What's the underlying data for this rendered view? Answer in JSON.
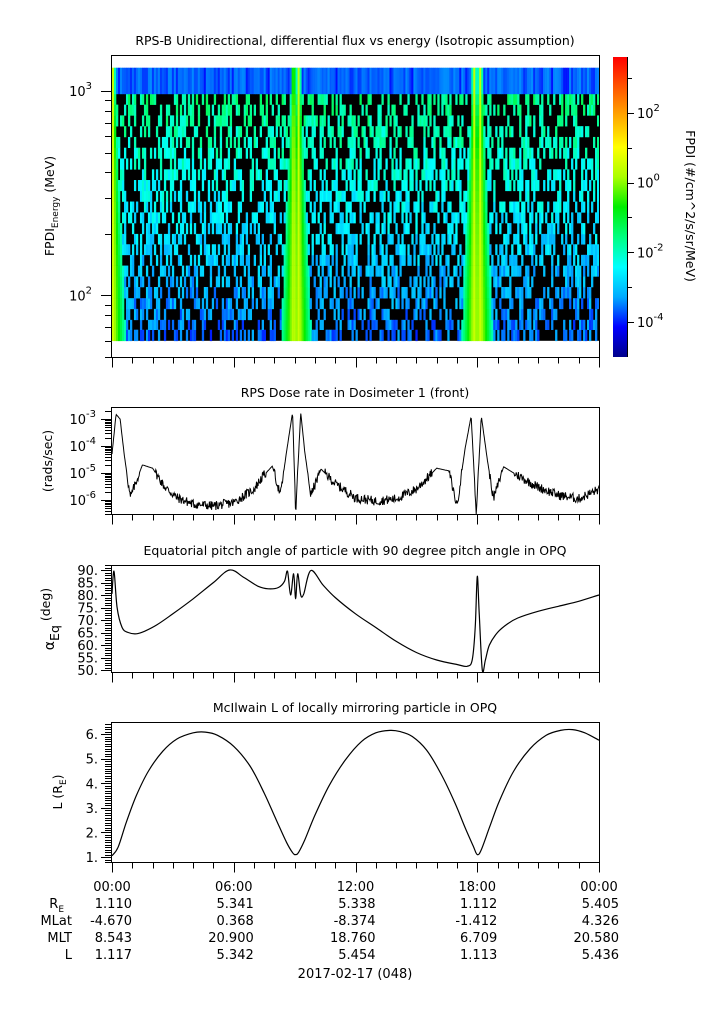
{
  "chart_data": [
    {
      "type": "heatmap",
      "title": "RPS-B  Unidirectional, differential flux vs energy (Isotropic assumption)",
      "ylabel": "FPDI",
      "ylabel_sub": "Energy",
      "ylabel_unit": " (MeV)",
      "yscale": "log",
      "ylim": [
        50,
        1500
      ],
      "yticks": [
        {
          "value": 100,
          "base": "10",
          "exp": "2"
        },
        {
          "value": 1000,
          "base": "10",
          "exp": "3"
        }
      ],
      "energy_bins_MeV": [
        60,
        68,
        76,
        86,
        97,
        110,
        124,
        140,
        158,
        178,
        200,
        226,
        255,
        288,
        325,
        367,
        414,
        468,
        528,
        596,
        673,
        760,
        858,
        968,
        1300
      ],
      "xlim_hours": [
        0,
        24
      ],
      "colorbar": {
        "label": "FPDI (#/cm^2/s/sr/MeV)",
        "scale": "log",
        "range": [
          1e-05,
          4000
        ],
        "ticks": [
          {
            "value": 100,
            "base": "10",
            "exp": "2"
          },
          {
            "value": 1,
            "base": "10",
            "exp": "0"
          },
          {
            "value": 0.01,
            "base": "10",
            "exp": "-2"
          },
          {
            "value": 0.0001,
            "base": "10",
            "exp": "-4"
          }
        ],
        "colors": [
          "#00008b",
          "#0000ff",
          "#00aaff",
          "#00ffff",
          "#00ff80",
          "#00ee00",
          "#aaff00",
          "#ffff00",
          "#ffaa00",
          "#ff5500",
          "#ff0000"
        ]
      },
      "belt_crossings_hours": [
        0.05,
        8.95,
        9.2,
        17.85,
        18.15
      ],
      "background_flux_typical": 0.001,
      "peak_flux_typical": 3,
      "fill_value_color": "#000000"
    },
    {
      "type": "line",
      "title": "RPS  Dose rate in Dosimeter 1 (front)",
      "ylabel": "(rads/sec)",
      "yscale": "log",
      "ylim": [
        3e-07,
        0.0028
      ],
      "yticks": [
        {
          "value": 0.001,
          "base": "10",
          "exp": "-3"
        },
        {
          "value": 0.0001,
          "base": "10",
          "exp": "-4"
        },
        {
          "value": 1e-05,
          "base": "10",
          "exp": "-5"
        },
        {
          "value": 1e-06,
          "base": "10",
          "exp": "-6"
        }
      ],
      "x_hours": [
        0,
        0.2,
        0.4,
        0.6,
        0.9,
        1.2,
        1.5,
        2.0,
        2.6,
        3.2,
        4.0,
        5.0,
        6.0,
        7.0,
        7.4,
        7.9,
        8.3,
        8.6,
        8.9,
        9.05,
        9.3,
        9.5,
        9.8,
        10.3,
        11.0,
        12.0,
        13.0,
        14.0,
        15.0,
        16.0,
        16.6,
        17.0,
        17.4,
        17.7,
        17.95,
        18.2,
        18.5,
        18.8,
        19.3,
        20.0,
        21.0,
        22.0,
        23.0,
        24.0
      ],
      "y_rads_per_sec": [
        5e-05,
        0.0015,
        0.001,
        5e-05,
        1.2e-06,
        5e-06,
        2e-05,
        1.5e-05,
        3e-06,
        1.2e-06,
        7e-07,
        6e-07,
        8e-07,
        2.5e-06,
        7e-06,
        1.8e-05,
        1.5e-06,
        6e-05,
        0.0018,
        3e-07,
        0.0018,
        6e-05,
        1.5e-06,
        1.4e-05,
        4e-06,
        1.2e-06,
        9e-07,
        1.1e-06,
        2.5e-06,
        1.5e-05,
        1.2e-05,
        6e-07,
        8e-05,
        0.0013,
        3e-07,
        0.0013,
        3e-05,
        1.1e-06,
        1.7e-05,
        8e-06,
        3e-06,
        1.5e-06,
        1.1e-06,
        2.5e-06
      ]
    },
    {
      "type": "line",
      "title": "Equatorial pitch angle of particle with 90 degree pitch angle in OPQ",
      "ylabel": "α",
      "ylabel_sub": "Eq",
      "ylabel_unit": " (deg)",
      "ylim": [
        49.2,
        92
      ],
      "yticks": [
        "90.",
        "85.",
        "80.",
        "75.",
        "70.",
        "65.",
        "60.",
        "55.",
        "50."
      ],
      "ytick_values": [
        90,
        85,
        80,
        75,
        70,
        65,
        60,
        55,
        50
      ],
      "x_hours": [
        0,
        0.1,
        0.25,
        0.5,
        0.8,
        1.2,
        1.6,
        2.2,
        3.0,
        4.0,
        5.0,
        5.8,
        6.5,
        7.2,
        7.7,
        8.2,
        8.5,
        8.65,
        8.8,
        8.95,
        9.05,
        9.15,
        9.3,
        9.45,
        9.8,
        10.4,
        11.0,
        12.0,
        13.0,
        14.0,
        15.0,
        16.0,
        17.0,
        17.5,
        17.75,
        17.9,
        18.0,
        18.1,
        18.25,
        18.4,
        18.6,
        19.0,
        19.5,
        20.0,
        21.0,
        22.0,
        23.0,
        24.0
      ],
      "y_deg": [
        80.5,
        89.5,
        75,
        67,
        65,
        64.5,
        65.5,
        68,
        72.5,
        78.5,
        85,
        90,
        87,
        83.5,
        82.5,
        83,
        85.5,
        89.5,
        80,
        88.5,
        78.5,
        88.5,
        80,
        80.5,
        89.8,
        84,
        79,
        72.5,
        67,
        61.5,
        57,
        54,
        52.2,
        51.5,
        54,
        67,
        87.5,
        72,
        50,
        54,
        60,
        65,
        68.5,
        70.8,
        73.5,
        75.5,
        77.5,
        80
      ]
    },
    {
      "type": "line",
      "title": "McIlwain L of locally mirroring particle in OPQ",
      "ylabel": "L (R",
      "ylabel_sub": "E",
      "ylabel_unit": ")",
      "ylim": [
        0.8,
        6.49
      ],
      "yticks": [
        "6.",
        "5.",
        "4.",
        "3.",
        "2.",
        "1."
      ],
      "ytick_values": [
        6,
        5,
        4,
        3,
        2,
        1
      ],
      "x_hours": [
        0,
        0.3,
        0.7,
        1.2,
        1.8,
        2.5,
        3.2,
        4.0,
        4.6,
        5.2,
        6.0,
        6.8,
        7.5,
        8.1,
        8.6,
        8.9,
        9.05,
        9.2,
        9.5,
        10.0,
        10.7,
        11.5,
        12.3,
        13.0,
        13.7,
        14.2,
        14.8,
        15.5,
        16.2,
        16.9,
        17.4,
        17.8,
        18.0,
        18.2,
        18.6,
        19.1,
        19.8,
        20.6,
        21.4,
        22.1,
        22.7,
        23.3,
        24.0
      ],
      "y_RE": [
        1.05,
        1.4,
        2.4,
        3.5,
        4.5,
        5.3,
        5.8,
        6.05,
        6.08,
        5.95,
        5.5,
        4.7,
        3.6,
        2.5,
        1.6,
        1.18,
        1.1,
        1.2,
        1.7,
        2.7,
        3.9,
        4.95,
        5.7,
        6.05,
        6.15,
        6.1,
        5.9,
        5.35,
        4.4,
        3.2,
        2.2,
        1.45,
        1.1,
        1.3,
        2.2,
        3.3,
        4.5,
        5.4,
        5.95,
        6.15,
        6.18,
        6.05,
        5.75
      ]
    }
  ],
  "x_axis": {
    "tick_labels": [
      "00:00",
      "06:00",
      "12:00",
      "18:00",
      "00:00"
    ],
    "tick_hours": [
      0,
      6,
      12,
      18,
      24
    ],
    "date_label": "2017-02-17 (048)"
  },
  "ephemeris": {
    "rows": [
      {
        "label": "R",
        "label_sub": "E",
        "values": [
          "1.110",
          "5.341",
          "5.338",
          "1.112",
          "5.405"
        ]
      },
      {
        "label": "MLat",
        "label_sub": "",
        "values": [
          "-4.670",
          "0.368",
          "-8.374",
          "-1.412",
          "4.326"
        ]
      },
      {
        "label": "MLT",
        "label_sub": "",
        "values": [
          "8.543",
          "20.900",
          "18.760",
          "6.709",
          "20.580"
        ]
      },
      {
        "label": "L",
        "label_sub": "",
        "values": [
          "1.117",
          "5.342",
          "5.454",
          "1.113",
          "5.436"
        ]
      }
    ]
  }
}
